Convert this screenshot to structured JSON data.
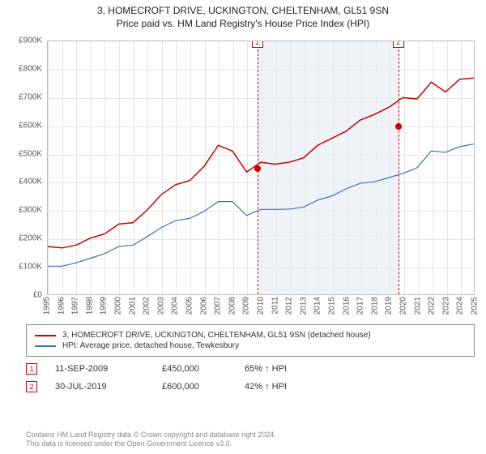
{
  "title": {
    "line1": "3, HOMECROFT DRIVE, UCKINGTON, CHELTENHAM, GL51 9SN",
    "line2": "Price paid vs. HM Land Registry's House Price Index (HPI)"
  },
  "chart": {
    "type": "line",
    "background_color": "#ffffff",
    "grid_color": "#e4e4e4",
    "shade_color": "#e8ecf4",
    "axis_color": "#bbbbbb",
    "tick_font_size": 10,
    "tick_color": "#555555",
    "ylim": [
      0,
      900000
    ],
    "ytick_step": 100000,
    "y_ticks": [
      "£0",
      "£100K",
      "£200K",
      "£300K",
      "£400K",
      "£500K",
      "£600K",
      "£700K",
      "£800K",
      "£900K"
    ],
    "xlim": [
      1995,
      2025
    ],
    "x_ticks": [
      1995,
      1996,
      1997,
      1998,
      1999,
      2000,
      2001,
      2002,
      2003,
      2004,
      2005,
      2006,
      2007,
      2008,
      2009,
      2010,
      2011,
      2012,
      2013,
      2014,
      2015,
      2016,
      2017,
      2018,
      2019,
      2020,
      2021,
      2022,
      2023,
      2024,
      2025
    ],
    "shaded_region": {
      "x_start": 2009.7,
      "x_end": 2019.58
    },
    "markers": [
      {
        "label": "1",
        "x": 2009.7,
        "y": 450000,
        "dash_color": "#cc0000",
        "point_color": "#cc0000"
      },
      {
        "label": "2",
        "x": 2019.58,
        "y": 600000,
        "dash_color": "#cc0000",
        "point_color": "#cc0000"
      }
    ],
    "marker_box_y_offset": -6,
    "series": [
      {
        "name": "red",
        "color": "#cc0000",
        "line_width": 1.5,
        "points": [
          [
            1995,
            170000
          ],
          [
            1996,
            165000
          ],
          [
            1997,
            175000
          ],
          [
            1998,
            200000
          ],
          [
            1999,
            215000
          ],
          [
            2000,
            250000
          ],
          [
            2001,
            255000
          ],
          [
            2002,
            300000
          ],
          [
            2003,
            355000
          ],
          [
            2004,
            390000
          ],
          [
            2005,
            405000
          ],
          [
            2006,
            455000
          ],
          [
            2007,
            530000
          ],
          [
            2008,
            510000
          ],
          [
            2009,
            435000
          ],
          [
            2010,
            470000
          ],
          [
            2011,
            463000
          ],
          [
            2012,
            470000
          ],
          [
            2013,
            485000
          ],
          [
            2014,
            530000
          ],
          [
            2015,
            555000
          ],
          [
            2016,
            580000
          ],
          [
            2017,
            620000
          ],
          [
            2018,
            640000
          ],
          [
            2019,
            665000
          ],
          [
            2020,
            700000
          ],
          [
            2021,
            695000
          ],
          [
            2022,
            755000
          ],
          [
            2023,
            720000
          ],
          [
            2024,
            765000
          ],
          [
            2025,
            770000
          ]
        ]
      },
      {
        "name": "blue",
        "color": "#3b6fb6",
        "line_width": 1.2,
        "points": [
          [
            1995,
            100000
          ],
          [
            1996,
            100000
          ],
          [
            1997,
            112000
          ],
          [
            1998,
            128000
          ],
          [
            1999,
            145000
          ],
          [
            2000,
            170000
          ],
          [
            2001,
            175000
          ],
          [
            2002,
            205000
          ],
          [
            2003,
            238000
          ],
          [
            2004,
            262000
          ],
          [
            2005,
            270000
          ],
          [
            2006,
            295000
          ],
          [
            2007,
            330000
          ],
          [
            2008,
            330000
          ],
          [
            2009,
            280000
          ],
          [
            2010,
            302000
          ],
          [
            2011,
            302000
          ],
          [
            2012,
            303000
          ],
          [
            2013,
            310000
          ],
          [
            2014,
            335000
          ],
          [
            2015,
            350000
          ],
          [
            2016,
            375000
          ],
          [
            2017,
            395000
          ],
          [
            2018,
            400000
          ],
          [
            2019,
            415000
          ],
          [
            2020,
            430000
          ],
          [
            2021,
            450000
          ],
          [
            2022,
            510000
          ],
          [
            2023,
            505000
          ],
          [
            2024,
            525000
          ],
          [
            2025,
            535000
          ]
        ]
      }
    ]
  },
  "legend": {
    "items": [
      {
        "color": "#cc0000",
        "label": "3, HOMECROFT DRIVE, UCKINGTON, CHELTENHAM, GL51 9SN (detached house)"
      },
      {
        "color": "#3b6fb6",
        "label": "HPI: Average price, detached house, Tewkesbury"
      }
    ]
  },
  "transactions": [
    {
      "badge": "1",
      "date": "11-SEP-2009",
      "price": "£450,000",
      "hpi": "65% ↑ HPI"
    },
    {
      "badge": "2",
      "date": "30-JUL-2019",
      "price": "£600,000",
      "hpi": "42% ↑ HPI"
    }
  ],
  "footer": {
    "line1": "Contains HM Land Registry data © Crown copyright and database right 2024.",
    "line2": "This data is licensed under the Open Government Licence v3.0."
  }
}
